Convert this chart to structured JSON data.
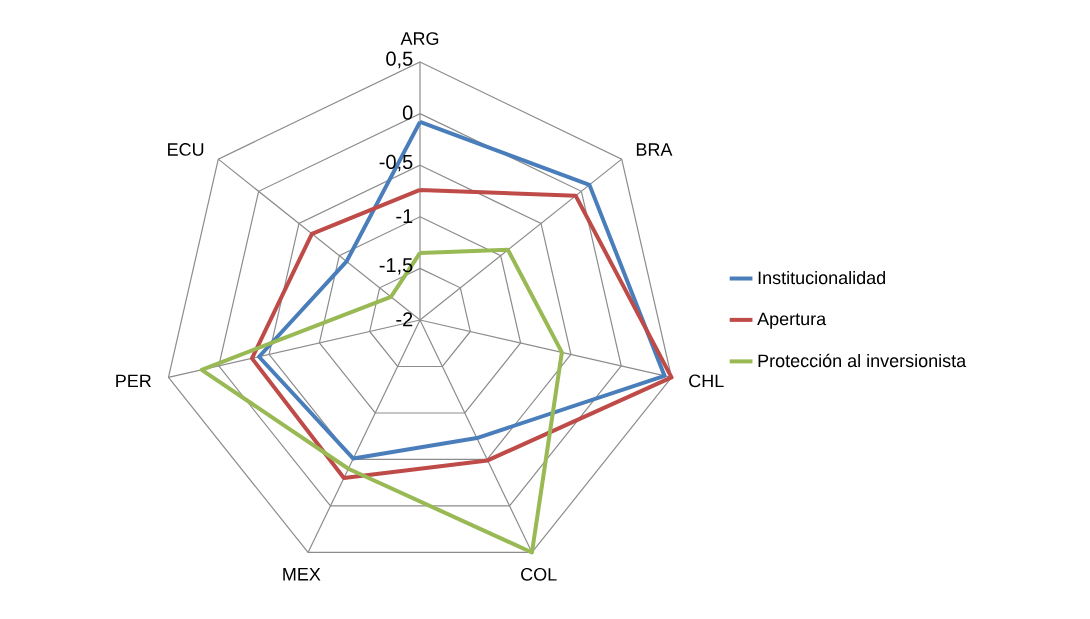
{
  "chart_data": {
    "type": "radar",
    "categories": [
      "ARG",
      "BRA",
      "CHL",
      "COL",
      "MEX",
      "PER",
      "ECU"
    ],
    "ylim": [
      -2,
      0.5
    ],
    "yticks": [
      {
        "value": -2,
        "label": "-2"
      },
      {
        "value": -1.5,
        "label": "-1,5"
      },
      {
        "value": -1,
        "label": "-1"
      },
      {
        "value": -0.5,
        "label": "-0,5"
      },
      {
        "value": 0,
        "label": "0"
      },
      {
        "value": 0.5,
        "label": "0,5"
      }
    ],
    "grid": true,
    "legend": "right",
    "marker": "none",
    "series": [
      {
        "name": "Institucionalidad",
        "color": "#4a7ebb",
        "values": [
          -0.08,
          0.1,
          0.43,
          -0.73,
          -0.51,
          -0.4,
          -1.09
        ]
      },
      {
        "name": "Apertura",
        "color": "#be4b48",
        "values": [
          -0.74,
          -0.07,
          0.5,
          -0.49,
          -0.3,
          -0.33,
          -0.66
        ]
      },
      {
        "name": "Protección al inversionista",
        "color": "#98b954",
        "values": [
          -1.35,
          -0.91,
          -0.59,
          0.5,
          -0.4,
          0.17,
          -1.64
        ]
      }
    ]
  }
}
